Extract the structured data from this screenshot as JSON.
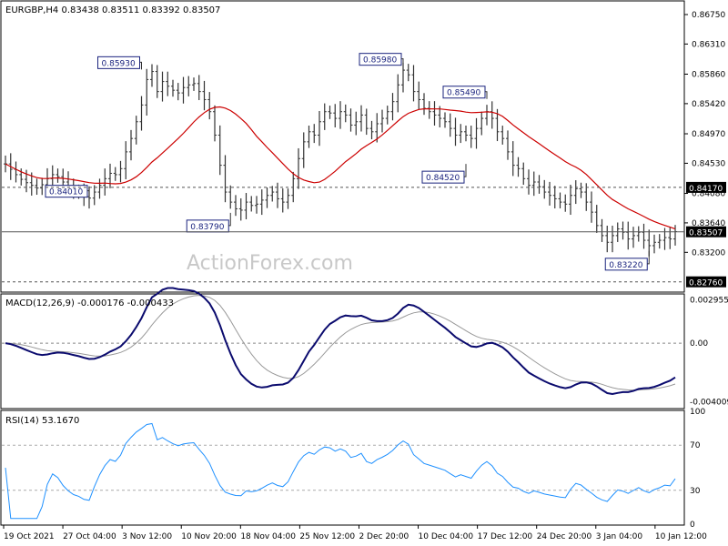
{
  "chart_data": [
    {
      "type": "ohlc",
      "title": "EURGBP,H4  0.83438 0.83511 0.83392 0.83507",
      "watermark": "ActionForex.com",
      "ylim": [
        0.8262,
        0.8694
      ],
      "y_ticks": [
        "0.86750",
        "0.86310",
        "0.85860",
        "0.85420",
        "0.84970",
        "0.84530",
        "0.84080",
        "0.83640",
        "0.83200"
      ],
      "price_tags": [
        {
          "label": "0.84170",
          "value": 0.8417,
          "style": "dark",
          "line": "dashed"
        },
        {
          "label": "0.83507",
          "value": 0.83507,
          "style": "dark",
          "line": "solid"
        },
        {
          "label": "0.82760",
          "value": 0.8276,
          "style": "dark",
          "line": "dashed"
        }
      ],
      "annotations": [
        {
          "label": "0.85930",
          "bar": 26
        },
        {
          "label": "0.84010",
          "bar": 16
        },
        {
          "label": "0.83790",
          "bar": 43
        },
        {
          "label": "0.85980",
          "bar": 76
        },
        {
          "label": "0.85490",
          "bar": 92
        },
        {
          "label": "0.84520",
          "bar": 88
        },
        {
          "label": "0.83220",
          "bar": 123
        }
      ],
      "ma_color": "#cc0000",
      "bar_color": "#333333",
      "close": [
        0.8452,
        0.8444,
        0.8436,
        0.8429,
        0.8424,
        0.842,
        0.8416,
        0.8421,
        0.843,
        0.8436,
        0.8433,
        0.8425,
        0.8418,
        0.8412,
        0.8409,
        0.8403,
        0.8401,
        0.841,
        0.842,
        0.843,
        0.8438,
        0.8436,
        0.8445,
        0.847,
        0.849,
        0.8515,
        0.854,
        0.8578,
        0.859,
        0.856,
        0.8575,
        0.8568,
        0.8562,
        0.8558,
        0.8566,
        0.857,
        0.8572,
        0.856,
        0.8548,
        0.853,
        0.8495,
        0.845,
        0.841,
        0.8395,
        0.8385,
        0.8383,
        0.8395,
        0.839,
        0.8392,
        0.8398,
        0.8405,
        0.841,
        0.84,
        0.8395,
        0.8405,
        0.843,
        0.846,
        0.8485,
        0.85,
        0.8495,
        0.8515,
        0.853,
        0.8528,
        0.852,
        0.853,
        0.8525,
        0.851,
        0.8515,
        0.8525,
        0.8505,
        0.85,
        0.8512,
        0.852,
        0.853,
        0.8545,
        0.857,
        0.8592,
        0.8585,
        0.856,
        0.8548,
        0.8535,
        0.853,
        0.8525,
        0.852,
        0.8515,
        0.8505,
        0.8495,
        0.85,
        0.8495,
        0.849,
        0.8505,
        0.852,
        0.853,
        0.852,
        0.85,
        0.849,
        0.847,
        0.845,
        0.8445,
        0.843,
        0.842,
        0.8425,
        0.8418,
        0.841,
        0.8405,
        0.84,
        0.8395,
        0.8392,
        0.8405,
        0.8415,
        0.841,
        0.8395,
        0.838,
        0.836,
        0.8345,
        0.8335,
        0.8345,
        0.8355,
        0.835,
        0.834,
        0.8345,
        0.835,
        0.8338,
        0.833,
        0.8335,
        0.8338,
        0.8342,
        0.834,
        0.8351
      ],
      "ma_period": 20
    },
    {
      "type": "line",
      "title": "MACD(12,26,9) -0.000176 -0.000433",
      "ylim": [
        -0.0044,
        0.0033
      ],
      "y_ticks": [
        "0.002955",
        "0.00",
        "-0.004009"
      ],
      "signal_color": "#999999",
      "macd_color": "#0b0b6e"
    },
    {
      "type": "line",
      "title": "RSI(14) 53.1670",
      "ylim": [
        0,
        100
      ],
      "y_ticks": [
        "100",
        "70",
        "30",
        "0"
      ],
      "levels": [
        70,
        30
      ],
      "line_color": "#1e90ff"
    }
  ],
  "x_labels": [
    "19 Oct 2021",
    "27 Oct 04:00",
    "3 Nov 12:00",
    "10 Nov 20:00",
    "18 Nov 04:00",
    "25 Nov 12:00",
    "2 Dec 20:00",
    "10 Dec 04:00",
    "17 Dec 12:00",
    "24 Dec 20:00",
    "3 Jan 04:00",
    "10 Jan 12:00"
  ]
}
